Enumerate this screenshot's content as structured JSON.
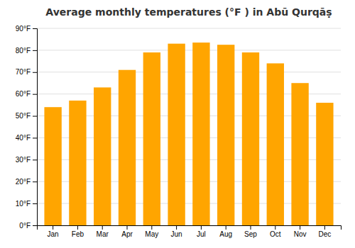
{
  "chart_data": {
    "type": "bar",
    "title": "Average monthly temperatures (°F ) in Abū Qurqāṣ",
    "categories": [
      "Jan",
      "Feb",
      "Mar",
      "Apr",
      "May",
      "Jun",
      "Jul",
      "Aug",
      "Sep",
      "Oct",
      "Nov",
      "Dec"
    ],
    "values": [
      54,
      57,
      63,
      71,
      79,
      83,
      83.5,
      82.5,
      79,
      74,
      65,
      56
    ],
    "color": "#FFA500",
    "ylim": [
      0,
      90
    ],
    "yticks": [
      {
        "value": 0,
        "label": "0°F"
      },
      {
        "value": 10,
        "label": "10°F"
      },
      {
        "value": 20,
        "label": "20°F"
      },
      {
        "value": 30,
        "label": "30°F"
      },
      {
        "value": 40,
        "label": "40°F"
      },
      {
        "value": 50,
        "label": "50°F"
      },
      {
        "value": 60,
        "label": "60°F"
      },
      {
        "value": 70,
        "label": "70°F"
      },
      {
        "value": 80,
        "label": "80°F"
      },
      {
        "value": 90,
        "label": "90°F"
      }
    ],
    "grid": true
  }
}
